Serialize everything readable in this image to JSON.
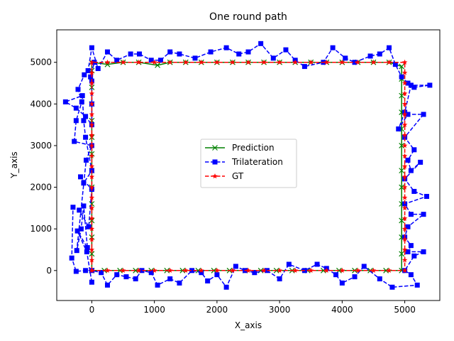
{
  "chart_data": {
    "type": "line",
    "title": "One round path",
    "xlabel": "X_axis",
    "ylabel": "Y_axis",
    "xlim": [
      -560,
      5560
    ],
    "ylim": [
      -720,
      5780
    ],
    "xticks": [
      0,
      1000,
      2000,
      3000,
      4000,
      5000
    ],
    "yticks": [
      0,
      1000,
      2000,
      3000,
      4000,
      5000
    ],
    "grid": false,
    "legend_position": "center",
    "series": [
      {
        "name": "Prediction",
        "color": "#008000",
        "style": "solid",
        "marker": "x",
        "points": [
          [
            0,
            0
          ],
          [
            0,
            400
          ],
          [
            0,
            800
          ],
          [
            0,
            1200
          ],
          [
            0,
            1600
          ],
          [
            0,
            2000
          ],
          [
            0,
            2400
          ],
          [
            0,
            2800
          ],
          [
            0,
            3200
          ],
          [
            0,
            3600
          ],
          [
            0,
            4000
          ],
          [
            0,
            4400
          ],
          [
            0,
            4800
          ],
          [
            0,
            5000
          ],
          [
            250,
            4950
          ],
          [
            500,
            5000
          ],
          [
            750,
            5000
          ],
          [
            1050,
            4930
          ],
          [
            1250,
            5000
          ],
          [
            1500,
            5000
          ],
          [
            1750,
            5000
          ],
          [
            2000,
            5000
          ],
          [
            2250,
            5000
          ],
          [
            2500,
            5000
          ],
          [
            2750,
            5000
          ],
          [
            3000,
            5000
          ],
          [
            3250,
            5000
          ],
          [
            3500,
            5000
          ],
          [
            3750,
            5000
          ],
          [
            4000,
            5000
          ],
          [
            4250,
            5000
          ],
          [
            4500,
            5000
          ],
          [
            4750,
            5000
          ],
          [
            4950,
            4900
          ],
          [
            4950,
            4600
          ],
          [
            4950,
            4200
          ],
          [
            4950,
            3800
          ],
          [
            4950,
            3400
          ],
          [
            4950,
            3000
          ],
          [
            4950,
            2400
          ],
          [
            4950,
            2000
          ],
          [
            4950,
            1600
          ],
          [
            4950,
            1200
          ],
          [
            4950,
            800
          ],
          [
            4950,
            400
          ],
          [
            4950,
            0
          ],
          [
            4700,
            0
          ],
          [
            4450,
            0
          ],
          [
            4200,
            0
          ],
          [
            3950,
            0
          ],
          [
            3700,
            0
          ],
          [
            3450,
            0
          ],
          [
            3200,
            0
          ],
          [
            2950,
            0
          ],
          [
            2700,
            0
          ],
          [
            2450,
            0
          ],
          [
            2200,
            0
          ],
          [
            1950,
            0
          ],
          [
            1700,
            0
          ],
          [
            1450,
            0
          ],
          [
            1200,
            0
          ],
          [
            950,
            0
          ],
          [
            700,
            0
          ],
          [
            450,
            0
          ],
          [
            200,
            0
          ],
          [
            0,
            0
          ]
        ]
      },
      {
        "name": "Trilateration",
        "color": "#0000ff",
        "style": "dashed",
        "marker": "s",
        "points": [
          [
            0,
            -280
          ],
          [
            -80,
            450
          ],
          [
            -230,
            950
          ],
          [
            -70,
            550
          ],
          [
            -130,
            1550
          ],
          [
            -170,
            1000
          ],
          [
            -240,
            480
          ],
          [
            -90,
            2650
          ],
          [
            0,
            3000
          ],
          [
            -280,
            3100
          ],
          [
            -250,
            3600
          ],
          [
            -160,
            4050
          ],
          [
            -220,
            4350
          ],
          [
            -120,
            4700
          ],
          [
            -60,
            4800
          ],
          [
            0,
            5350
          ],
          [
            100,
            4850
          ],
          [
            250,
            5250
          ],
          [
            400,
            5050
          ],
          [
            620,
            5200
          ],
          [
            760,
            5200
          ],
          [
            950,
            5050
          ],
          [
            1100,
            5050
          ],
          [
            1250,
            5250
          ],
          [
            1400,
            5200
          ],
          [
            1650,
            5100
          ],
          [
            1900,
            5250
          ],
          [
            2150,
            5350
          ],
          [
            2350,
            5200
          ],
          [
            2500,
            5250
          ],
          [
            2700,
            5450
          ],
          [
            2900,
            5100
          ],
          [
            3100,
            5300
          ],
          [
            3250,
            5050
          ],
          [
            3400,
            4900
          ],
          [
            3700,
            5000
          ],
          [
            3850,
            5350
          ],
          [
            4050,
            5100
          ],
          [
            4200,
            5000
          ],
          [
            4450,
            5150
          ],
          [
            4600,
            5200
          ],
          [
            4750,
            5350
          ],
          [
            4850,
            4950
          ],
          [
            4950,
            4650
          ],
          [
            5050,
            4500
          ],
          [
            5150,
            4400
          ],
          [
            5400,
            4450
          ],
          [
            5100,
            4450
          ],
          [
            5000,
            3800
          ],
          [
            4900,
            3400
          ],
          [
            5050,
            3750
          ],
          [
            5300,
            3750
          ],
          [
            5000,
            3200
          ],
          [
            5150,
            2900
          ],
          [
            5050,
            2650
          ],
          [
            5100,
            2400
          ],
          [
            5250,
            2600
          ],
          [
            5000,
            2200
          ],
          [
            5150,
            1900
          ],
          [
            5350,
            1780
          ],
          [
            5000,
            1600
          ],
          [
            5100,
            1350
          ],
          [
            5300,
            1350
          ],
          [
            5050,
            1050
          ],
          [
            5000,
            800
          ],
          [
            5100,
            600
          ],
          [
            5050,
            450
          ],
          [
            5300,
            450
          ],
          [
            5150,
            350
          ],
          [
            5000,
            0
          ],
          [
            5100,
            -100
          ],
          [
            5200,
            -350
          ],
          [
            4800,
            -400
          ],
          [
            4600,
            -200
          ],
          [
            4350,
            100
          ],
          [
            4200,
            -150
          ],
          [
            4000,
            -300
          ],
          [
            3900,
            -100
          ],
          [
            3750,
            50
          ],
          [
            3600,
            150
          ],
          [
            3400,
            0
          ],
          [
            3150,
            150
          ],
          [
            3000,
            -200
          ],
          [
            2800,
            0
          ],
          [
            2600,
            -50
          ],
          [
            2450,
            0
          ],
          [
            2300,
            100
          ],
          [
            2150,
            -400
          ],
          [
            2000,
            -100
          ],
          [
            1850,
            -250
          ],
          [
            1750,
            -50
          ],
          [
            1600,
            0
          ],
          [
            1400,
            -300
          ],
          [
            1250,
            -200
          ],
          [
            1050,
            -350
          ],
          [
            950,
            -50
          ],
          [
            800,
            0
          ],
          [
            700,
            -200
          ],
          [
            550,
            -150
          ],
          [
            400,
            -100
          ],
          [
            250,
            -350
          ],
          [
            150,
            -50
          ],
          [
            0,
            0
          ],
          [
            -100,
            0
          ],
          [
            -250,
            -20
          ],
          [
            -320,
            300
          ],
          [
            -300,
            1520
          ],
          [
            -200,
            1450
          ],
          [
            -50,
            1050
          ],
          [
            0,
            1950
          ],
          [
            -180,
            2250
          ],
          [
            -130,
            2100
          ],
          [
            0,
            2400
          ],
          [
            -100,
            3200
          ],
          [
            -130,
            3600
          ],
          [
            -150,
            4200
          ],
          [
            -420,
            4050
          ],
          [
            -250,
            3900
          ],
          [
            -100,
            3700
          ],
          [
            0,
            3500
          ],
          [
            0,
            4000
          ],
          [
            0,
            4550
          ],
          [
            -20,
            4650
          ],
          [
            40,
            5000
          ]
        ]
      },
      {
        "name": "GT",
        "color": "#ff0000",
        "style": "dashed",
        "marker": "*",
        "points": [
          [
            0,
            0
          ],
          [
            0,
            250
          ],
          [
            0,
            500
          ],
          [
            0,
            750
          ],
          [
            0,
            1000
          ],
          [
            0,
            1250
          ],
          [
            0,
            1500
          ],
          [
            0,
            1750
          ],
          [
            0,
            2000
          ],
          [
            0,
            2250
          ],
          [
            0,
            2500
          ],
          [
            0,
            2750
          ],
          [
            0,
            3000
          ],
          [
            0,
            3250
          ],
          [
            0,
            3500
          ],
          [
            0,
            3750
          ],
          [
            0,
            4000
          ],
          [
            0,
            4250
          ],
          [
            0,
            4500
          ],
          [
            0,
            4750
          ],
          [
            0,
            5000
          ],
          [
            250,
            5000
          ],
          [
            500,
            5000
          ],
          [
            750,
            5000
          ],
          [
            1000,
            5000
          ],
          [
            1250,
            5000
          ],
          [
            1500,
            5000
          ],
          [
            1750,
            5000
          ],
          [
            2000,
            5000
          ],
          [
            2250,
            5000
          ],
          [
            2500,
            5000
          ],
          [
            2750,
            5000
          ],
          [
            3000,
            5000
          ],
          [
            3250,
            5000
          ],
          [
            3500,
            5000
          ],
          [
            3750,
            5000
          ],
          [
            4000,
            5000
          ],
          [
            4250,
            5000
          ],
          [
            4500,
            5000
          ],
          [
            4750,
            5000
          ],
          [
            5000,
            5000
          ],
          [
            5000,
            4750
          ],
          [
            5000,
            4500
          ],
          [
            5000,
            4250
          ],
          [
            5000,
            4000
          ],
          [
            5000,
            3750
          ],
          [
            5000,
            3500
          ],
          [
            5000,
            3250
          ],
          [
            5000,
            3000
          ],
          [
            5000,
            2750
          ],
          [
            5000,
            2500
          ],
          [
            5000,
            2250
          ],
          [
            5000,
            2000
          ],
          [
            5000,
            1750
          ],
          [
            5000,
            1500
          ],
          [
            5000,
            1250
          ],
          [
            5000,
            1000
          ],
          [
            5000,
            750
          ],
          [
            5000,
            500
          ],
          [
            5000,
            250
          ],
          [
            5000,
            0
          ],
          [
            4750,
            0
          ],
          [
            4500,
            0
          ],
          [
            4250,
            0
          ],
          [
            4000,
            0
          ],
          [
            3750,
            0
          ],
          [
            3500,
            0
          ],
          [
            3250,
            0
          ],
          [
            3000,
            0
          ],
          [
            2750,
            0
          ],
          [
            2500,
            0
          ],
          [
            2250,
            0
          ],
          [
            2000,
            0
          ],
          [
            1750,
            0
          ],
          [
            1500,
            0
          ],
          [
            1250,
            0
          ],
          [
            1000,
            0
          ],
          [
            750,
            0
          ],
          [
            500,
            0
          ],
          [
            250,
            0
          ],
          [
            0,
            0
          ]
        ]
      }
    ]
  }
}
